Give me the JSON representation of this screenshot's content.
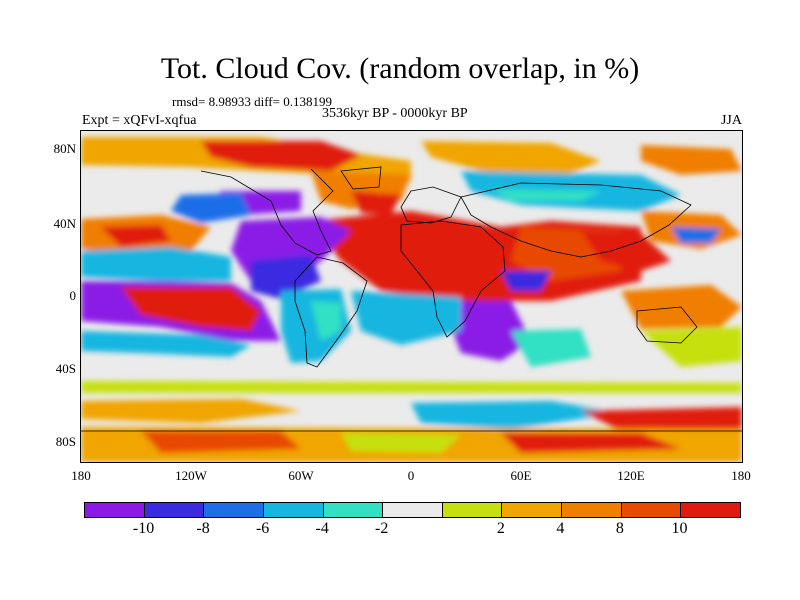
{
  "title": "Tot. Cloud Cov. (random overlap, in %)",
  "stats": "rmsd= 8.98933  diff= 0.138199",
  "period": "3536kyr BP - 0000kyr BP",
  "experiment": "Expt = xQFvI-xqfua",
  "season": "JJA",
  "map": {
    "lat_ticks": [
      "80N",
      "40N",
      "0",
      "40S",
      "80S"
    ],
    "lon_ticks": [
      "180",
      "120W",
      "60W",
      "0",
      "60E",
      "120E",
      "180"
    ],
    "background_color": "#ebebeb"
  },
  "colorbar": {
    "colors": [
      "#8b1ae6",
      "#3b2be0",
      "#1f6ee8",
      "#17b6e0",
      "#33e0c4",
      "#ebebeb",
      "#c6e00f",
      "#f0a500",
      "#f07e00",
      "#e84a00",
      "#e01a10"
    ],
    "labels": [
      "-10",
      "-8",
      "-6",
      "-4",
      "-2",
      "2",
      "4",
      "8",
      "10"
    ]
  }
}
